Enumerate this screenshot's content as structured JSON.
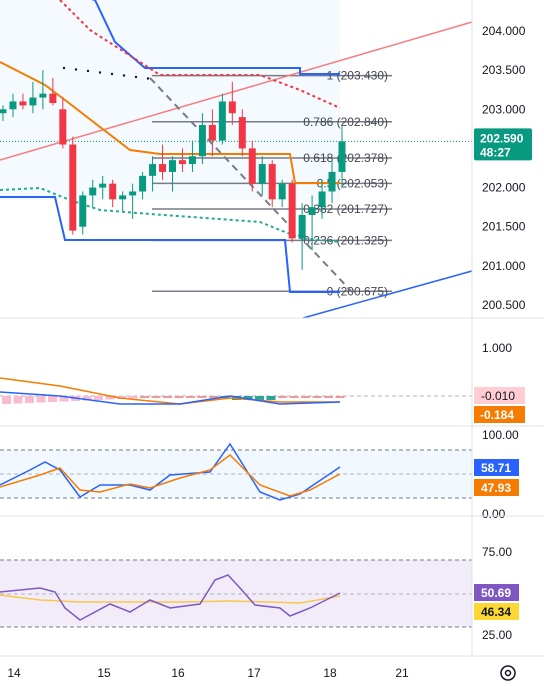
{
  "chart_data": {
    "type": "candlestick",
    "x_ticks": [
      "14",
      "15",
      "16",
      "17",
      "18",
      "21"
    ],
    "price_panel": {
      "y_ticks": [
        "204.000",
        "203.500",
        "203.000",
        "202.500",
        "202.000",
        "201.500",
        "201.000",
        "200.500"
      ],
      "ylim": [
        200.33,
        204.2
      ],
      "current_price": "202.590",
      "countdown": "48:27",
      "candles": [
        [
          202.95,
          203.05,
          202.85,
          203.0
        ],
        [
          203.0,
          203.2,
          202.9,
          203.1
        ],
        [
          203.1,
          203.2,
          203.0,
          203.05
        ],
        [
          203.05,
          203.35,
          202.95,
          203.15
        ],
        [
          203.15,
          203.5,
          203.0,
          203.2
        ],
        [
          203.2,
          203.4,
          203.05,
          203.08
        ],
        [
          203.0,
          203.15,
          202.5,
          202.55
        ],
        [
          202.55,
          202.65,
          201.4,
          201.45
        ],
        [
          201.5,
          201.95,
          201.4,
          201.9
        ],
        [
          201.9,
          202.1,
          201.75,
          202.0
        ],
        [
          202.0,
          202.15,
          201.85,
          202.05
        ],
        [
          202.05,
          202.1,
          201.75,
          201.85
        ],
        [
          201.85,
          201.95,
          201.7,
          201.9
        ],
        [
          201.9,
          202.05,
          201.6,
          201.95
        ],
        [
          201.95,
          202.2,
          201.85,
          202.15
        ],
        [
          202.15,
          202.4,
          201.95,
          202.3
        ],
        [
          202.3,
          202.55,
          202.1,
          202.2
        ],
        [
          202.2,
          202.4,
          201.95,
          202.35
        ],
        [
          202.35,
          202.5,
          202.2,
          202.3
        ],
        [
          202.3,
          202.6,
          202.2,
          202.4
        ],
        [
          202.4,
          202.95,
          202.3,
          202.8
        ],
        [
          202.8,
          203.0,
          202.4,
          202.6
        ],
        [
          202.6,
          203.2,
          202.55,
          203.1
        ],
        [
          203.1,
          203.35,
          202.8,
          202.95
        ],
        [
          202.9,
          203.0,
          202.4,
          202.5
        ],
        [
          202.5,
          202.6,
          201.95,
          202.05
        ],
        [
          202.05,
          202.4,
          201.9,
          202.3
        ],
        [
          202.3,
          202.35,
          201.75,
          201.85
        ],
        [
          201.85,
          202.1,
          201.75,
          202.05
        ],
        [
          202.05,
          202.1,
          201.3,
          201.35
        ],
        [
          201.35,
          201.8,
          200.95,
          201.65
        ],
        [
          201.65,
          201.9,
          201.2,
          201.75
        ],
        [
          201.75,
          202.1,
          201.6,
          201.95
        ],
        [
          201.95,
          202.35,
          201.8,
          202.2
        ],
        [
          202.2,
          202.8,
          202.0,
          202.59
        ]
      ],
      "fib_levels": [
        {
          "ratio": "1",
          "value": "203.430"
        },
        {
          "ratio": "0.786",
          "value": "202.840"
        },
        {
          "ratio": "0.618",
          "value": "202.378"
        },
        {
          "ratio": "0.5",
          "value": "202.053"
        },
        {
          "ratio": "0.382",
          "value": "201.727"
        },
        {
          "ratio": "0.236",
          "value": "201.325"
        },
        {
          "ratio": "0",
          "value": "200.675"
        }
      ],
      "donchian_upper": [
        204.5,
        204.5,
        204.5,
        204.5,
        204.5,
        204.5,
        204.3,
        204.1,
        203.9,
        203.7,
        203.5,
        203.3,
        203.1,
        203.0,
        202.95,
        202.9,
        202.8,
        202.7,
        202.6,
        202.55,
        202.5,
        202.45,
        202.45,
        202.45,
        202.45,
        202.45,
        202.45,
        202.45,
        202.45,
        202.45,
        202.45,
        202.45,
        202.45,
        202.45,
        202.45
      ],
      "donchian_lower": [
        201.15,
        201.15,
        201.15,
        201.15,
        201.15,
        201.15,
        201.15,
        201.15,
        201.15,
        201.15,
        201.15,
        201.15,
        201.15,
        201.15,
        201.15,
        201.15,
        201.15,
        201.15,
        201.15,
        201.15,
        201.15,
        201.15,
        201.15,
        201.15,
        201.15,
        201.15,
        201.15,
        201.15,
        201.15,
        201.15,
        201.15,
        201.15,
        201.15,
        201.15,
        201.15
      ],
      "ma_fast": [
        202.55,
        202.55,
        202.55,
        202.55,
        202.55,
        202.55,
        202.55,
        202.55,
        201.75,
        201.75,
        201.75,
        201.75,
        201.75,
        201.75,
        201.75,
        201.75,
        201.75,
        201.75,
        201.75,
        201.75,
        201.75,
        201.75,
        201.75,
        201.75,
        201.75,
        201.75,
        201.75,
        201.75,
        201.75,
        201.75,
        201.75,
        201.75,
        201.75,
        201.75,
        201.75
      ]
    },
    "macd_panel": {
      "y_ticks": [
        "1.000"
      ],
      "macd_value": "-0.010",
      "signal_value": "-0.184"
    },
    "stoch_panel": {
      "y_ticks": [
        "100.00",
        "0.00"
      ],
      "k_value": "58.71",
      "d_value": "47.93"
    },
    "rsi_panel": {
      "y_ticks": [
        "75.00",
        "25.00"
      ],
      "rsi_value": "50.69",
      "ma_value": "46.34"
    },
    "colors": {
      "up": "#089981",
      "down": "#f23645",
      "fib_line": "#787b86",
      "donchian": "#2962ff",
      "orange": "#f57c00",
      "teal": "#22ab94",
      "red_dots": "#f23645",
      "purple": "#7e57c2",
      "trend_red": "#f77c80",
      "trend_blue": "#2962ff",
      "dashed_gray": "#787b86"
    }
  }
}
